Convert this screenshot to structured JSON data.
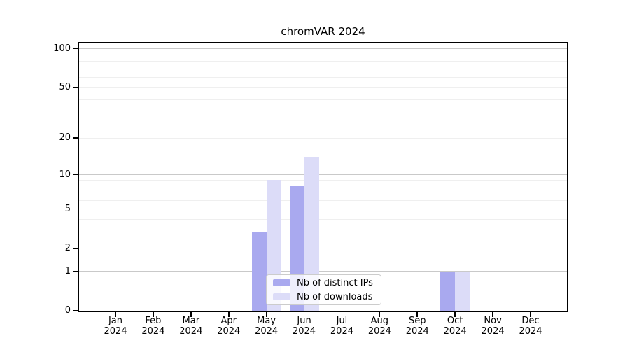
{
  "chart_data": {
    "type": "bar",
    "title": "chromVAR 2024",
    "categories": [
      {
        "month": "Jan",
        "year": "2024"
      },
      {
        "month": "Feb",
        "year": "2024"
      },
      {
        "month": "Mar",
        "year": "2024"
      },
      {
        "month": "Apr",
        "year": "2024"
      },
      {
        "month": "May",
        "year": "2024"
      },
      {
        "month": "Jun",
        "year": "2024"
      },
      {
        "month": "Jul",
        "year": "2024"
      },
      {
        "month": "Aug",
        "year": "2024"
      },
      {
        "month": "Sep",
        "year": "2024"
      },
      {
        "month": "Oct",
        "year": "2024"
      },
      {
        "month": "Nov",
        "year": "2024"
      },
      {
        "month": "Dec",
        "year": "2024"
      }
    ],
    "series": [
      {
        "name": "Nb of distinct IPs",
        "color": "#a9a9ef",
        "values": [
          0,
          0,
          0,
          0,
          3,
          8,
          0,
          0,
          0,
          1,
          0,
          0
        ]
      },
      {
        "name": "Nb of downloads",
        "color": "#dcdcf8",
        "values": [
          0,
          0,
          0,
          0,
          9,
          14,
          0,
          0,
          0,
          1,
          0,
          0
        ]
      }
    ],
    "y_axis": {
      "scale": "log1p",
      "ticks": [
        0,
        1,
        2,
        5,
        10,
        20,
        50,
        100
      ],
      "major_gridlines": [
        1,
        10,
        100
      ],
      "minor_gridlines": [
        2,
        3,
        4,
        5,
        6,
        7,
        8,
        9,
        20,
        30,
        40,
        50,
        60,
        70,
        80,
        90
      ],
      "max_value": 110
    },
    "x_axis": {
      "grid": false
    },
    "legend": {
      "position": "bottom-center-inside"
    },
    "colors": {
      "major_gridline": "#c9c9c9",
      "minor_gridline": "#efefef",
      "axis": "#000000",
      "legend_border": "#cccccc",
      "background": "#ffffff"
    }
  }
}
